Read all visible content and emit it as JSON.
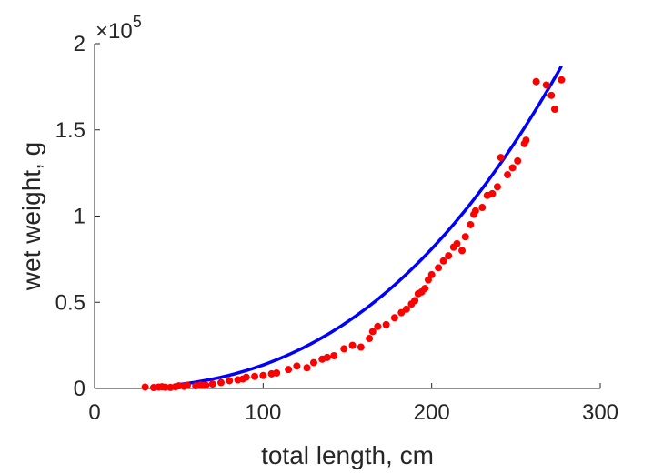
{
  "chart_data": {
    "type": "scatter",
    "title": "",
    "xlabel": "total length, cm",
    "ylabel": "wet weight, g",
    "xlim": [
      0,
      300
    ],
    "ylim": [
      0,
      200000
    ],
    "y_exponent_label": "×10",
    "y_exponent_value": "5",
    "xticks": [
      0,
      100,
      200,
      300
    ],
    "xtick_labels": [
      "0",
      "100",
      "200",
      "300"
    ],
    "yticks": [
      0,
      50000,
      100000,
      150000,
      200000
    ],
    "ytick_labels": [
      "0",
      "0.5",
      "1",
      "1.5",
      "2"
    ],
    "grid": false,
    "legend": "none",
    "colors": {
      "points": "#ff0000",
      "fit": "#0000ff",
      "axes": "#262626"
    },
    "series": [
      {
        "kind": "scatter",
        "x": [
          30,
          35,
          38,
          40,
          42,
          45,
          48,
          50,
          53,
          55,
          60,
          63,
          66,
          70,
          75,
          80,
          85,
          88,
          90,
          95,
          100,
          105,
          108,
          115,
          120,
          126,
          130,
          135,
          138,
          142,
          148,
          153,
          158,
          163,
          165,
          168,
          173,
          178,
          182,
          185,
          188,
          190,
          192,
          194,
          196,
          198,
          200,
          204,
          207,
          210,
          213,
          215,
          218,
          220,
          223,
          225,
          226,
          230,
          233,
          236,
          239,
          241,
          245,
          248,
          251,
          255,
          256,
          262,
          268,
          271,
          273,
          277
        ],
        "y": [
          800,
          500,
          800,
          1000,
          700,
          600,
          1000,
          1500,
          1200,
          1800,
          1500,
          2000,
          1800,
          2600,
          3400,
          4500,
          5000,
          5500,
          6500,
          7000,
          7500,
          8500,
          9000,
          11000,
          13000,
          12000,
          15000,
          17000,
          18000,
          19000,
          23000,
          25000,
          24000,
          29000,
          33000,
          36000,
          37000,
          41000,
          44000,
          46000,
          49000,
          51000,
          55000,
          56000,
          58000,
          63000,
          66000,
          70000,
          74000,
          77000,
          82000,
          84000,
          80000,
          88000,
          95000,
          101000,
          103000,
          105000,
          112000,
          113000,
          117000,
          134000,
          124000,
          128000,
          132000,
          142000,
          144000,
          178000,
          176000,
          170000,
          162000,
          179000
        ]
      },
      {
        "kind": "line",
        "fit_model": "y = a·x^b",
        "x": [
          50,
          75,
          100,
          125,
          150,
          175,
          200,
          225,
          250,
          277
        ],
        "y": [
          2300,
          5500,
          10000,
          17000,
          28000,
          43000,
          65000,
          93000,
          131000,
          187000
        ]
      }
    ]
  }
}
